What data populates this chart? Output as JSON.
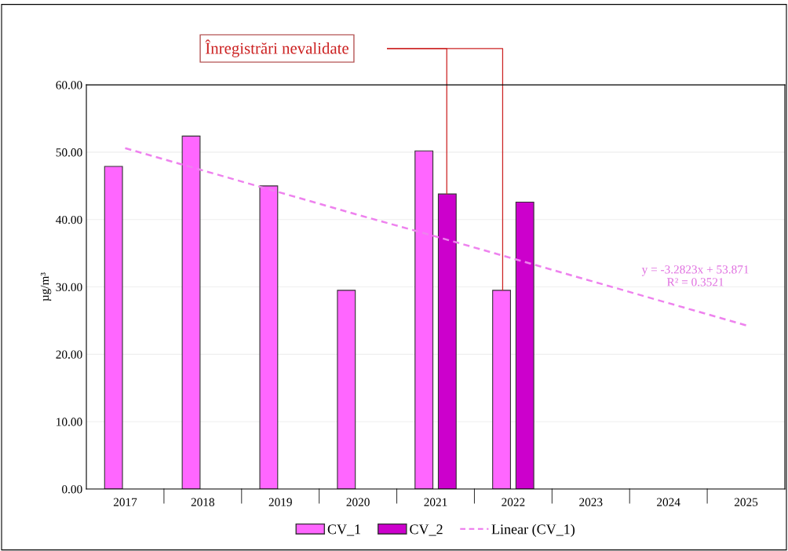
{
  "chart_data": {
    "type": "bar",
    "ylabel": "µg/m³",
    "categories": [
      "2017",
      "2018",
      "2019",
      "2020",
      "2021",
      "2022",
      "2023",
      "2024",
      "2025"
    ],
    "series": [
      {
        "name": "CV_1",
        "color": "#ff66ff",
        "values": [
          47.9,
          52.4,
          45.0,
          29.5,
          50.2,
          29.5,
          null,
          null,
          null
        ]
      },
      {
        "name": "CV_2",
        "color": "#cc00cc",
        "values": [
          null,
          null,
          null,
          null,
          43.8,
          42.6,
          null,
          null,
          null
        ]
      },
      {
        "name": "Linear (CV_1)",
        "type": "line",
        "color": "#ee82ee",
        "line_style": "dashed",
        "values": [
          50.6,
          47.3,
          44.0,
          40.7,
          37.5,
          34.2,
          30.9,
          27.6,
          24.3
        ]
      }
    ],
    "ylim": [
      0,
      60
    ],
    "yticks": [
      {
        "value": 0,
        "label": "0.00"
      },
      {
        "value": 10,
        "label": "10.00"
      },
      {
        "value": 20,
        "label": "20.00"
      },
      {
        "value": 30,
        "label": "30.00"
      },
      {
        "value": 40,
        "label": "40.00"
      },
      {
        "value": 50,
        "label": "50.00"
      },
      {
        "value": 60,
        "label": "60.00"
      }
    ],
    "grid": "y",
    "legend": "bottom",
    "annotations": [
      "Înregistrări nevalidate",
      "y = -3.2823x + 53.871\nR² = 0.3521"
    ]
  }
}
